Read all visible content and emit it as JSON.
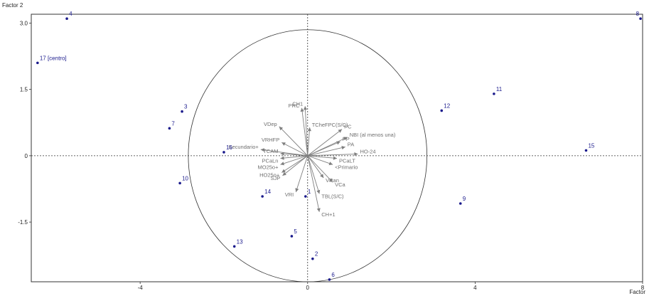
{
  "chart_data": {
    "type": "scatter",
    "title": "",
    "xlabel": "Factor",
    "ylabel": "Factor 2",
    "xlim": [
      -6.6,
      8.0
    ],
    "ylim": [
      -2.85,
      3.2
    ],
    "x_ticks": [
      -4,
      0,
      4,
      8
    ],
    "x_tick_labels": [
      "-4",
      "0",
      "4",
      "8"
    ],
    "y_ticks": [
      3.0,
      1.5,
      0,
      -1.5
    ],
    "y_tick_labels": [
      "3.0",
      "1.5",
      "0",
      "-1.5"
    ],
    "grid": false,
    "circle_radius": 2.85,
    "colors": {
      "points": "#1a1a8c",
      "point_labels": "#1a1a8c",
      "vectors": "#7f7f7f",
      "frame": "#333333"
    },
    "points": [
      {
        "label": "4",
        "x": -5.75,
        "y": 3.1
      },
      {
        "label": "8",
        "x": 7.95,
        "y": 3.1
      },
      {
        "label": "17 [centro]",
        "x": -6.45,
        "y": 2.1
      },
      {
        "label": "3",
        "x": -3.0,
        "y": 1.0
      },
      {
        "label": "7",
        "x": -3.3,
        "y": 0.62
      },
      {
        "label": "16",
        "x": -2.0,
        "y": 0.08
      },
      {
        "label": "10",
        "x": -3.05,
        "y": -0.62
      },
      {
        "label": "14",
        "x": -1.08,
        "y": -0.92
      },
      {
        "label": "1",
        "x": -0.05,
        "y": -0.92
      },
      {
        "label": "13",
        "x": -1.75,
        "y": -2.05
      },
      {
        "label": "5",
        "x": -0.38,
        "y": -1.82
      },
      {
        "label": "2",
        "x": 0.12,
        "y": -2.33
      },
      {
        "label": "6",
        "x": 0.52,
        "y": -2.8
      },
      {
        "label": "12",
        "x": 3.2,
        "y": 1.02
      },
      {
        "label": "11",
        "x": 4.45,
        "y": 1.4
      },
      {
        "label": "15",
        "x": 6.65,
        "y": 0.12
      },
      {
        "label": "9",
        "x": 3.65,
        "y": -1.08
      }
    ],
    "vectors": [
      {
        "label": "CH1",
        "x": -0.06,
        "y": 1.12
      },
      {
        "label": "PRC",
        "x": -0.14,
        "y": 1.08
      },
      {
        "label": "TCheFPC(S/C)",
        "x": 0.05,
        "y": 0.64
      },
      {
        "label": "VDep",
        "x": -0.68,
        "y": 0.66
      },
      {
        "label": "PC",
        "x": 0.82,
        "y": 0.6
      },
      {
        "label": "NBI (al menos una)",
        "x": 0.95,
        "y": 0.42
      },
      {
        "label": "VRHFP",
        "x": -0.62,
        "y": 0.3
      },
      {
        "label": "PP",
        "x": 0.78,
        "y": 0.32
      },
      {
        "label": "PA",
        "x": 0.9,
        "y": 0.2
      },
      {
        "label": "Secundario+",
        "x": -1.12,
        "y": 0.14
      },
      {
        "label": "TCAM",
        "x": -0.65,
        "y": 0.05
      },
      {
        "label": "HO-24",
        "x": 1.2,
        "y": 0.04
      },
      {
        "label": "PCaLT",
        "x": 0.7,
        "y": -0.06
      },
      {
        "label": "PCaLn",
        "x": -0.65,
        "y": -0.06
      },
      {
        "label": "MO25o+",
        "x": -0.65,
        "y": -0.2
      },
      {
        "label": "<Primario",
        "x": 0.6,
        "y": -0.2
      },
      {
        "label": "HO25o+",
        "x": -0.62,
        "y": -0.38
      },
      {
        "label": "SJP",
        "x": -0.6,
        "y": -0.45
      },
      {
        "label": "VRan",
        "x": 0.38,
        "y": -0.5
      },
      {
        "label": "VCa",
        "x": 0.6,
        "y": -0.6
      },
      {
        "label": "VRI",
        "x": -0.28,
        "y": -0.82
      },
      {
        "label": "TBL(S/C)",
        "x": 0.28,
        "y": -0.86
      },
      {
        "label": "CH+1",
        "x": 0.28,
        "y": -1.27
      }
    ]
  }
}
